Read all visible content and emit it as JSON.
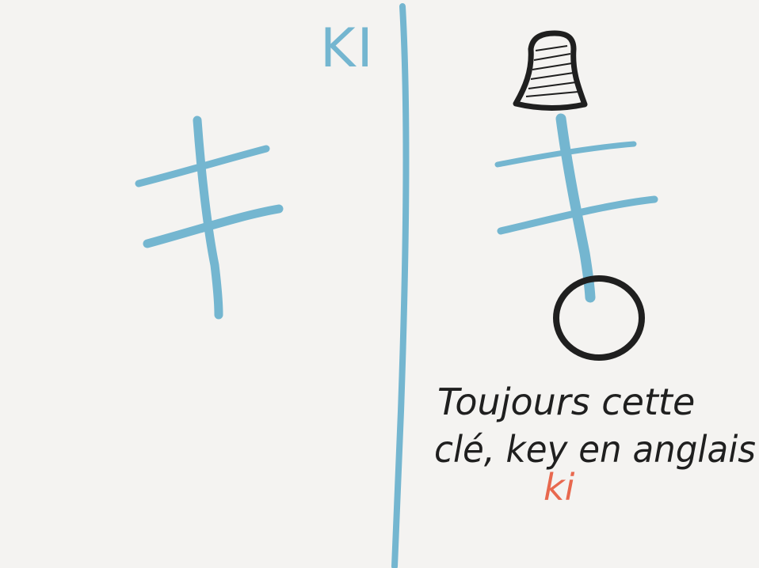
{
  "colors": {
    "background": "#f4f3f1",
    "blue": "#74b6d0",
    "ink": "#1f1f1f",
    "accent": "#e8684e"
  },
  "header": {
    "title": "KI"
  },
  "note": {
    "line1": "Toujours cette",
    "line2": "clé, key en anglais",
    "romaji": "ki"
  },
  "icons": [
    "kanji-ki-left",
    "divider-line",
    "bell-icon",
    "kanji-ki-right",
    "loop-circle"
  ]
}
